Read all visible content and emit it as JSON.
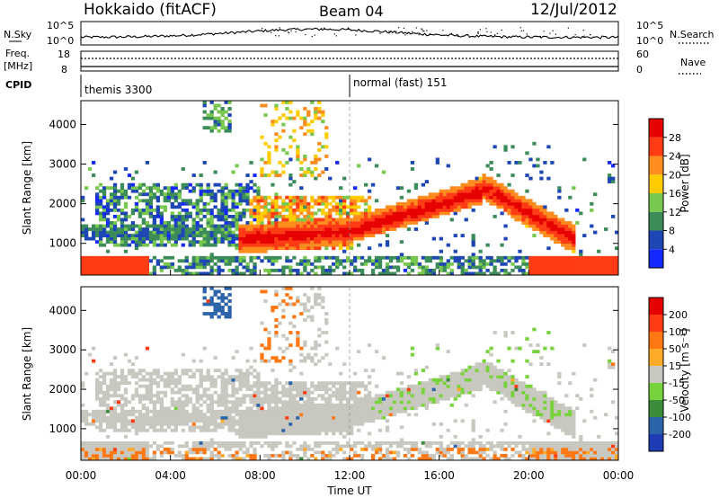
{
  "header": {
    "station": "Hokkaido (fitACF)",
    "beam": "Beam 04",
    "date": "12/Jul/2012"
  },
  "top_strips": {
    "nsky_label": "N.Sky",
    "nsky_ticks": [
      "10^5",
      "10^0"
    ],
    "nsearch_label": "N.Search",
    "nsearch_ticks": [
      "10^5",
      "10^0"
    ],
    "freq_label_1": "Freq.",
    "freq_label_2": "[MHz]",
    "freq_ticks": [
      "18",
      "8"
    ],
    "nave_label": "Nave",
    "nave_ticks": [
      "60",
      "0"
    ],
    "cpid_label": "CPID",
    "cpid_entries": [
      {
        "text": "themis 3300",
        "start_hour": 0
      },
      {
        "text": "normal (fast) 151",
        "start_hour": 12
      }
    ]
  },
  "chart_data": [
    {
      "type": "heatmap",
      "name": "power-panel",
      "ylabel": "Slant Range [km]",
      "ylim": [
        200,
        4600
      ],
      "yticks": [
        1000,
        2000,
        3000,
        4000
      ],
      "xlim": [
        0,
        24
      ],
      "colorbar": {
        "label": "Power [dB]",
        "ticks": [
          "4",
          "8",
          "12",
          "16",
          "20",
          "24",
          "28"
        ],
        "colors": [
          "#1428ff",
          "#1e46b4",
          "#3c8c5a",
          "#78c850",
          "#ffcc00",
          "#ff8c1e",
          "#ff3c14",
          "#e60000"
        ]
      }
    },
    {
      "type": "heatmap",
      "name": "velocity-panel",
      "ylabel": "Slant Range [km]",
      "ylim": [
        200,
        4600
      ],
      "yticks": [
        1000,
        2000,
        3000,
        4000
      ],
      "xlim": [
        0,
        24
      ],
      "xlabel": "Time UT",
      "xticks": [
        "00:00",
        "04:00",
        "08:00",
        "12:00",
        "16:00",
        "20:00",
        "00:00"
      ],
      "colorbar": {
        "label": "Velocity [m s⁻¹]",
        "ticks": [
          "200",
          "100",
          "50",
          "15",
          "-15",
          "-50",
          "-100",
          "-200"
        ],
        "colors": [
          "#1e3cb4",
          "#2c64aa",
          "#3c8c3c",
          "#78d23c",
          "#c8c8c0",
          "#ffaa28",
          "#ff7814",
          "#ff3c14",
          "#e60000"
        ]
      }
    }
  ]
}
